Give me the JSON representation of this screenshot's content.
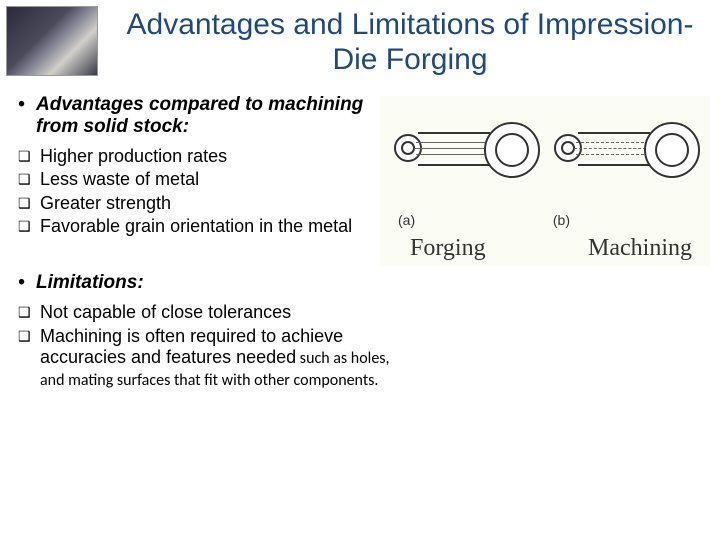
{
  "title": "Advantages and Limitations of Impression-Die Forging",
  "advantages": {
    "heading": "Advantages compared to machining from solid stock:",
    "items": [
      "Higher production rates",
      "Less waste of metal",
      "Greater strength",
      "Favorable grain orientation in the metal"
    ]
  },
  "limitations": {
    "heading": "Limitations:",
    "items": [
      {
        "text": "Not capable of close tolerances",
        "tail": ""
      },
      {
        "text": "Machining is often required to achieve accuracies and features needed",
        "tail": " such as holes, and mating surfaces that fit with other components."
      }
    ]
  },
  "figure": {
    "label_a": "(a)",
    "label_b": "(b)",
    "caption_a": "Forging",
    "caption_b": "Machining",
    "background": "#fbfcf4",
    "stroke": "#333333"
  },
  "colors": {
    "title": "#1f497d",
    "text": "#000000",
    "square": "#3b3b6d"
  },
  "glyphs": {
    "dot": "•",
    "square": "❑"
  }
}
